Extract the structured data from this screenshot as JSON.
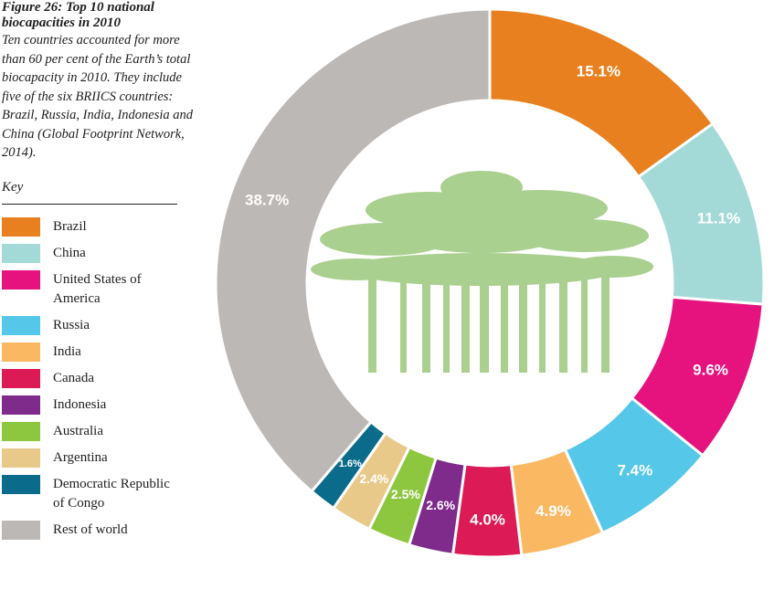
{
  "chart_data": {
    "type": "donut",
    "title": "Figure 26: Top 10 national biocapacities in 2010",
    "subtitle": "Ten countries accounted for more than 60 per cent of the Earth’s total biocapacity in 2010. They include five of the six BRIICS countries: Brazil, Russia, India, Indonesia and China (Global Footprint Network, 2014).",
    "legend_title": "Key",
    "categories": [
      "Brazil",
      "China",
      "United States of America",
      "Russia",
      "India",
      "Canada",
      "Indonesia",
      "Australia",
      "Argentina",
      "Democratic Republic of Congo",
      "Rest of world"
    ],
    "values": [
      15.1,
      11.1,
      9.6,
      7.4,
      4.9,
      4.0,
      2.6,
      2.5,
      2.4,
      1.6,
      38.7
    ],
    "value_labels": [
      "15.1%",
      "11.1%",
      "9.6%",
      "7.4%",
      "4.9%",
      "4.0%",
      "2.6%",
      "2.5%",
      "2.4%",
      "1.6%",
      "38.7%"
    ],
    "colors": [
      "#e8801f",
      "#a3dad8",
      "#e6137f",
      "#55c7e8",
      "#fbb862",
      "#dc1a55",
      "#7f2b8c",
      "#8dc63f",
      "#e8c98a",
      "#0a6c8a",
      "#bcb8b6"
    ]
  }
}
